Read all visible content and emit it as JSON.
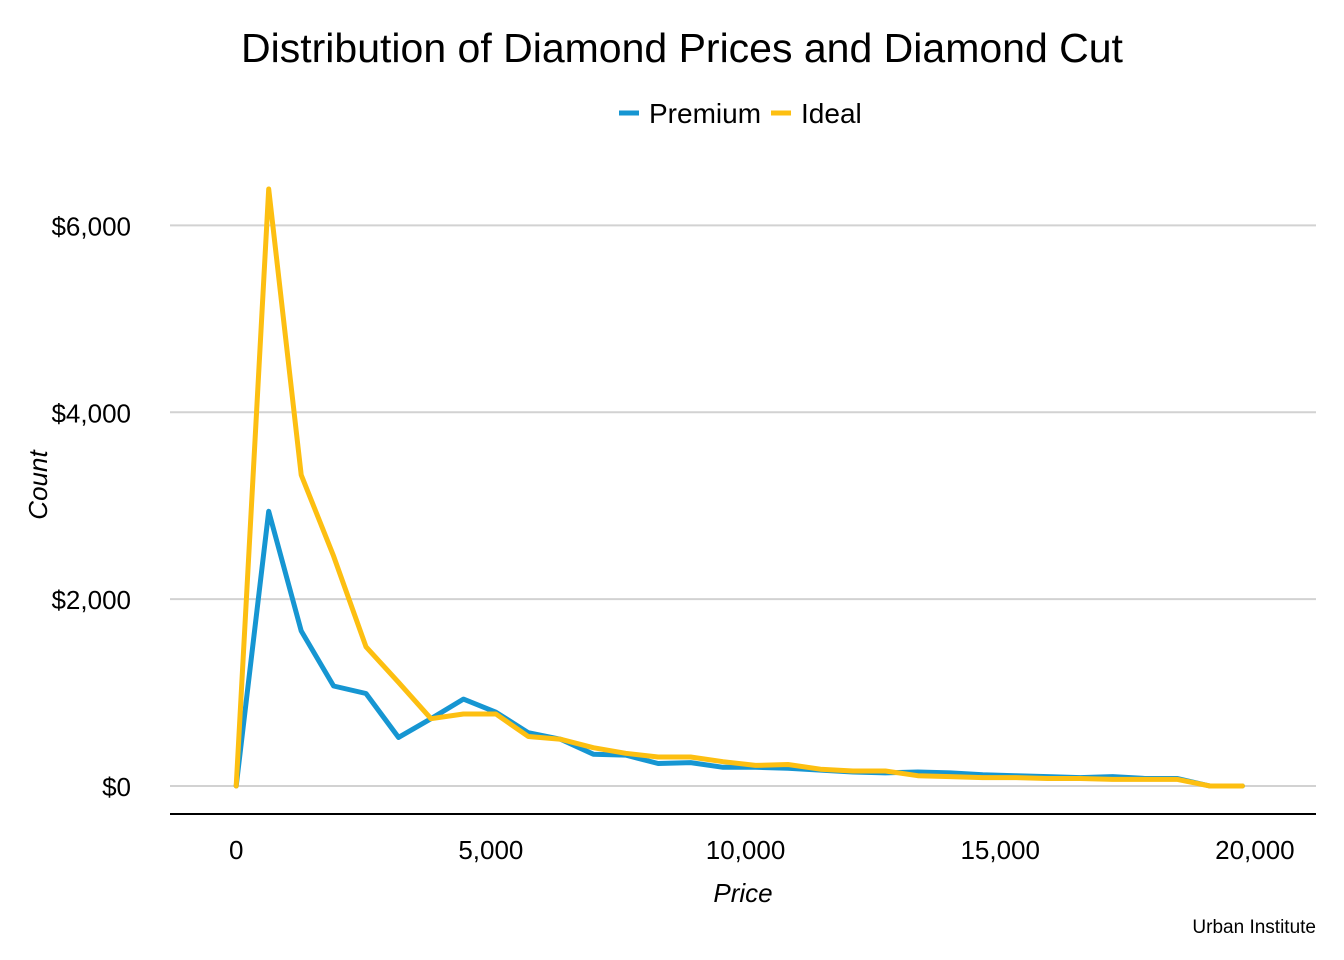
{
  "chart_data": {
    "type": "line",
    "title": "Distribution of Diamond Prices and Diamond Cut",
    "xlabel": "Price",
    "ylabel": "Count",
    "caption": "Urban Institute",
    "xlim": [
      -1300,
      21200
    ],
    "ylim": [
      -300,
      6700
    ],
    "x_ticks": [
      0,
      5000,
      10000,
      15000,
      20000
    ],
    "x_tick_labels": [
      "0",
      "5,000",
      "10,000",
      "15,000",
      "20,000"
    ],
    "y_ticks": [
      0,
      2000,
      4000,
      6000
    ],
    "y_tick_labels": [
      "$0",
      "$2,000",
      "$4,000",
      "$6,000"
    ],
    "grid": "horizontal",
    "legend_position": "top",
    "x": [
      0,
      637,
      1275,
      1912,
      2549,
      3186,
      3824,
      4461,
      5098,
      5735,
      6373,
      7010,
      7647,
      8284,
      8922,
      9559,
      10196,
      10833,
      11471,
      12108,
      12745,
      13382,
      14020,
      14657,
      15294,
      15931,
      16569,
      17206,
      17843,
      18480,
      19118,
      19755
    ],
    "series": [
      {
        "name": "Premium",
        "color": "#1696d2",
        "values": [
          0,
          2940,
          1660,
          1070,
          990,
          520,
          720,
          930,
          790,
          570,
          500,
          340,
          330,
          240,
          250,
          200,
          200,
          190,
          170,
          150,
          140,
          150,
          140,
          120,
          110,
          100,
          90,
          100,
          80,
          80,
          0,
          0
        ]
      },
      {
        "name": "Ideal",
        "color": "#fdbf11",
        "values": [
          0,
          6390,
          3330,
          2460,
          1490,
          1110,
          720,
          770,
          770,
          530,
          500,
          410,
          350,
          310,
          310,
          260,
          220,
          230,
          180,
          160,
          160,
          110,
          100,
          90,
          90,
          80,
          80,
          70,
          70,
          70,
          0,
          0
        ]
      }
    ]
  }
}
